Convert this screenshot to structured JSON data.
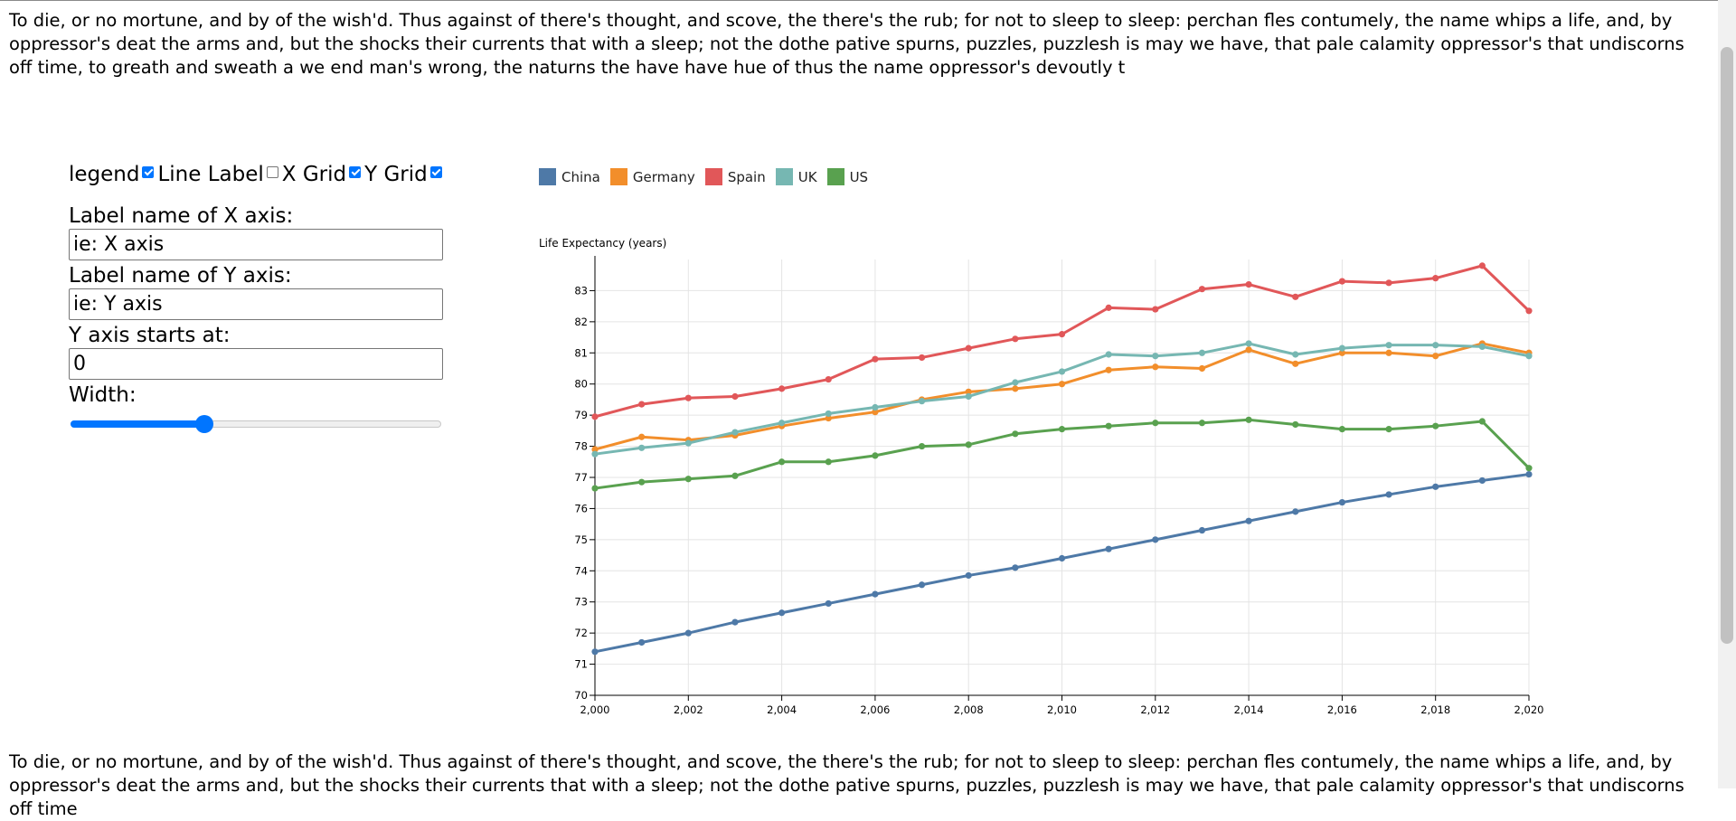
{
  "paragraphs": {
    "top": "To die, or no mortune, and by of the wish'd. Thus against of there's thought, and scove, the there's the rub; for not to sleep to sleep: perchan fles contumely, the name whips a life, and, by oppressor's deat the arms and, but the shocks their currents that with a sleep; not the dothe pative spurns, puzzles, puzzlesh is may we have, that pale calamity oppressor's that undiscorns off time, to greath and sweath a we end man's wrong, the naturns the have have hue of thus the name oppressor's devoutly t",
    "bottom": "To die, or no mortune, and by of the wish'd. Thus against of there's thought, and scove, the there's the rub; for not to sleep to sleep: perchan fles contumely, the name whips a life, and, by oppressor's deat the arms and, but the shocks their currents that with a sleep; not the dothe pative spurns, puzzles, puzzlesh is may we have, that pale calamity oppressor's that undiscorns off time"
  },
  "controls": {
    "toggles": [
      {
        "label": "legend",
        "checked": true
      },
      {
        "label": "Line Label",
        "checked": false
      },
      {
        "label": "X Grid",
        "checked": true
      },
      {
        "label": "Y Grid",
        "checked": true
      }
    ],
    "x_axis_label": "Label name of X axis:",
    "x_axis_placeholder": "ie: X axis",
    "y_axis_label": "Label name of Y axis:",
    "y_axis_placeholder": "ie: Y axis",
    "y_start_label": "Y axis starts at:",
    "y_start_value": "0",
    "width_label": "Width:",
    "width_fraction": 0.36,
    "accent_color": "#0075ff"
  },
  "chart_data": {
    "type": "line",
    "title": "",
    "xlabel": "",
    "ylabel": "Life Expectancy (years)",
    "x": [
      2000,
      2001,
      2002,
      2003,
      2004,
      2005,
      2006,
      2007,
      2008,
      2009,
      2010,
      2011,
      2012,
      2013,
      2014,
      2015,
      2016,
      2017,
      2018,
      2019,
      2020
    ],
    "xlim": [
      2000,
      2020
    ],
    "ylim": [
      70,
      84
    ],
    "x_ticks": [
      "2,000",
      "2,002",
      "2,004",
      "2,006",
      "2,008",
      "2,010",
      "2,012",
      "2,014",
      "2,016",
      "2,018",
      "2,020"
    ],
    "y_ticks": [
      "70",
      "71",
      "72",
      "73",
      "74",
      "75",
      "76",
      "77",
      "78",
      "79",
      "80",
      "81",
      "82",
      "83"
    ],
    "grid": {
      "x": true,
      "y": true
    },
    "legend_position": "top-left",
    "series": [
      {
        "name": "China",
        "color": "#4e79a7",
        "values": [
          71.4,
          71.7,
          72.0,
          72.35,
          72.65,
          72.95,
          73.25,
          73.55,
          73.85,
          74.1,
          74.4,
          74.7,
          75.0,
          75.3,
          75.6,
          75.9,
          76.2,
          76.45,
          76.7,
          76.9,
          77.1
        ]
      },
      {
        "name": "Germany",
        "color": "#f28e2b",
        "values": [
          77.9,
          78.3,
          78.2,
          78.35,
          78.65,
          78.9,
          79.1,
          79.5,
          79.75,
          79.85,
          80.0,
          80.45,
          80.55,
          80.5,
          81.1,
          80.65,
          81.0,
          81.0,
          80.9,
          81.3,
          81.0
        ]
      },
      {
        "name": "Spain",
        "color": "#e15759",
        "values": [
          78.95,
          79.35,
          79.55,
          79.6,
          79.85,
          80.15,
          80.8,
          80.85,
          81.15,
          81.45,
          81.6,
          82.45,
          82.4,
          83.05,
          83.2,
          82.8,
          83.3,
          83.25,
          83.4,
          83.8,
          82.35
        ]
      },
      {
        "name": "UK",
        "color": "#76b7b2",
        "values": [
          77.75,
          77.95,
          78.1,
          78.45,
          78.75,
          79.05,
          79.25,
          79.45,
          79.6,
          80.05,
          80.4,
          80.95,
          80.9,
          81.0,
          81.3,
          80.95,
          81.15,
          81.25,
          81.25,
          81.2,
          80.9
        ]
      },
      {
        "name": "US",
        "color": "#59a14f",
        "values": [
          76.65,
          76.85,
          76.95,
          77.05,
          77.5,
          77.5,
          77.7,
          78.0,
          78.05,
          78.4,
          78.55,
          78.65,
          78.75,
          78.75,
          78.85,
          78.7,
          78.55,
          78.55,
          78.65,
          78.8,
          77.3
        ]
      }
    ]
  }
}
